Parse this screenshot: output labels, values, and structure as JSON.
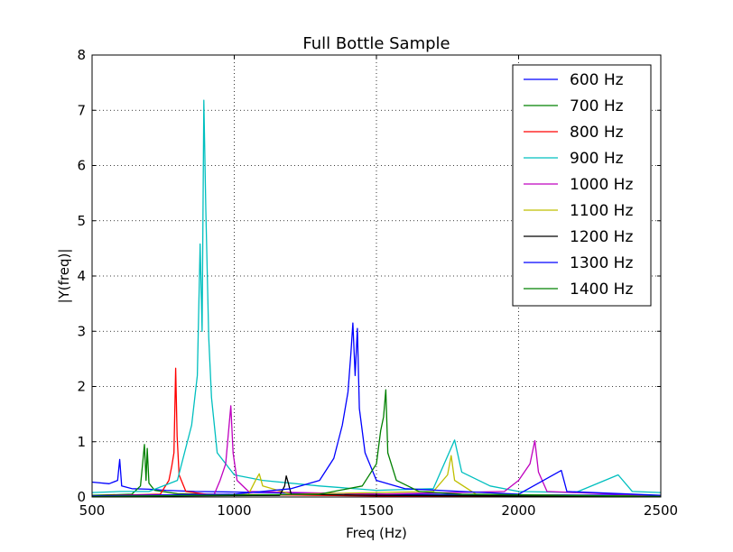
{
  "chart_data": {
    "type": "line",
    "title": "Full Bottle Sample",
    "xlabel": "Freq (Hz)",
    "ylabel": "|Y(freq)|",
    "xlim": [
      500,
      2500
    ],
    "ylim": [
      0,
      8
    ],
    "x_ticks": [
      500,
      1000,
      1500,
      2000,
      2500
    ],
    "y_ticks": [
      0,
      1,
      2,
      3,
      4,
      5,
      6,
      7,
      8
    ],
    "x_tick_labels": [
      "500",
      "1000",
      "1500",
      "2000",
      "2500"
    ],
    "y_tick_labels": [
      "0",
      "1",
      "2",
      "3",
      "4",
      "5",
      "6",
      "7",
      "8"
    ],
    "grid": true,
    "grid_style": "dotted",
    "legend_position": "top-right",
    "series": [
      {
        "name": "600 Hz",
        "color": "#0000ff",
        "values": [
          [
            500,
            0.27
          ],
          [
            560,
            0.24
          ],
          [
            590,
            0.3
          ],
          [
            597,
            0.68
          ],
          [
            604,
            0.2
          ],
          [
            640,
            0.15
          ],
          [
            700,
            0.14
          ],
          [
            760,
            0.12
          ],
          [
            860,
            0.1
          ],
          [
            1000,
            0.09
          ],
          [
            1200,
            0.07
          ],
          [
            1400,
            0.06
          ],
          [
            1600,
            0.05
          ],
          [
            2000,
            0.04
          ],
          [
            2500,
            0.03
          ]
        ]
      },
      {
        "name": "700 Hz",
        "color": "#008000",
        "values": [
          [
            500,
            0.03
          ],
          [
            640,
            0.05
          ],
          [
            670,
            0.2
          ],
          [
            678,
            0.62
          ],
          [
            684,
            0.95
          ],
          [
            690,
            0.3
          ],
          [
            694,
            0.88
          ],
          [
            700,
            0.25
          ],
          [
            720,
            0.12
          ],
          [
            800,
            0.06
          ],
          [
            1000,
            0.04
          ],
          [
            1500,
            0.03
          ],
          [
            2500,
            0.02
          ]
        ]
      },
      {
        "name": "800 Hz",
        "color": "#ff0000",
        "values": [
          [
            500,
            0.02
          ],
          [
            740,
            0.05
          ],
          [
            770,
            0.3
          ],
          [
            780,
            0.55
          ],
          [
            788,
            0.8
          ],
          [
            794,
            2.33
          ],
          [
            799,
            1.1
          ],
          [
            806,
            0.4
          ],
          [
            830,
            0.1
          ],
          [
            900,
            0.05
          ],
          [
            1500,
            0.02
          ],
          [
            2500,
            0.01
          ]
        ]
      },
      {
        "name": "900 Hz",
        "color": "#00bfbf",
        "values": [
          [
            500,
            0.08
          ],
          [
            600,
            0.1
          ],
          [
            700,
            0.1
          ],
          [
            800,
            0.3
          ],
          [
            850,
            1.3
          ],
          [
            870,
            2.2
          ],
          [
            880,
            4.58
          ],
          [
            887,
            3.0
          ],
          [
            893,
            7.18
          ],
          [
            900,
            5.2
          ],
          [
            910,
            2.9
          ],
          [
            920,
            1.8
          ],
          [
            940,
            0.8
          ],
          [
            1000,
            0.4
          ],
          [
            1100,
            0.3
          ],
          [
            1300,
            0.2
          ],
          [
            1500,
            0.12
          ],
          [
            1700,
            0.15
          ],
          [
            1775,
            1.03
          ],
          [
            1800,
            0.45
          ],
          [
            1900,
            0.2
          ],
          [
            2000,
            0.1
          ],
          [
            2200,
            0.08
          ],
          [
            2350,
            0.4
          ],
          [
            2400,
            0.1
          ],
          [
            2500,
            0.08
          ]
        ]
      },
      {
        "name": "1000 Hz",
        "color": "#bf00bf",
        "values": [
          [
            500,
            0.02
          ],
          [
            930,
            0.05
          ],
          [
            950,
            0.3
          ],
          [
            970,
            0.6
          ],
          [
            988,
            1.65
          ],
          [
            996,
            0.8
          ],
          [
            1010,
            0.3
          ],
          [
            1050,
            0.1
          ],
          [
            1500,
            0.05
          ],
          [
            1950,
            0.1
          ],
          [
            2000,
            0.3
          ],
          [
            2040,
            0.6
          ],
          [
            2057,
            1.02
          ],
          [
            2070,
            0.45
          ],
          [
            2100,
            0.1
          ],
          [
            2500,
            0.02
          ]
        ]
      },
      {
        "name": "1100 Hz",
        "color": "#bfbf00",
        "values": [
          [
            500,
            0.01
          ],
          [
            1050,
            0.05
          ],
          [
            1075,
            0.3
          ],
          [
            1088,
            0.42
          ],
          [
            1100,
            0.2
          ],
          [
            1200,
            0.05
          ],
          [
            1700,
            0.1
          ],
          [
            1750,
            0.4
          ],
          [
            1763,
            0.75
          ],
          [
            1775,
            0.3
          ],
          [
            1850,
            0.05
          ],
          [
            2500,
            0.01
          ]
        ]
      },
      {
        "name": "1200 Hz",
        "color": "#000000",
        "values": [
          [
            500,
            0.01
          ],
          [
            1160,
            0.03
          ],
          [
            1177,
            0.2
          ],
          [
            1183,
            0.38
          ],
          [
            1190,
            0.25
          ],
          [
            1200,
            0.05
          ],
          [
            1500,
            0.03
          ],
          [
            2000,
            0.02
          ],
          [
            2500,
            0.01
          ]
        ]
      },
      {
        "name": "1300 Hz",
        "color": "#0000ff",
        "values": [
          [
            500,
            0.02
          ],
          [
            1000,
            0.05
          ],
          [
            1200,
            0.15
          ],
          [
            1300,
            0.3
          ],
          [
            1350,
            0.7
          ],
          [
            1380,
            1.3
          ],
          [
            1400,
            1.9
          ],
          [
            1410,
            2.6
          ],
          [
            1417,
            3.15
          ],
          [
            1425,
            2.2
          ],
          [
            1433,
            3.05
          ],
          [
            1440,
            1.6
          ],
          [
            1460,
            0.8
          ],
          [
            1500,
            0.3
          ],
          [
            1600,
            0.15
          ],
          [
            1800,
            0.1
          ],
          [
            2000,
            0.05
          ],
          [
            2150,
            0.48
          ],
          [
            2170,
            0.1
          ],
          [
            2500,
            0.03
          ]
        ]
      },
      {
        "name": "1400 Hz",
        "color": "#008000",
        "values": [
          [
            500,
            0.01
          ],
          [
            1300,
            0.05
          ],
          [
            1450,
            0.2
          ],
          [
            1500,
            0.6
          ],
          [
            1515,
            1.2
          ],
          [
            1525,
            1.45
          ],
          [
            1533,
            1.94
          ],
          [
            1540,
            0.8
          ],
          [
            1570,
            0.3
          ],
          [
            1650,
            0.1
          ],
          [
            1800,
            0.05
          ],
          [
            2500,
            0.01
          ]
        ]
      }
    ]
  }
}
